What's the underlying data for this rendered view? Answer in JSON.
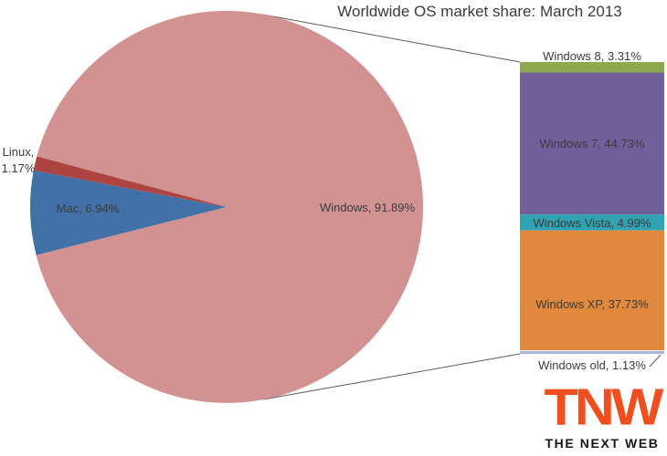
{
  "title": "Worldwide OS market share: March 2013",
  "chart_data": {
    "type": "pie",
    "subtype": "bar-of-pie",
    "title": "Worldwide OS market share: March 2013",
    "legend": "none",
    "data_labels": "category name, percentage",
    "pie_series": {
      "name": "OS market share",
      "slices": [
        {
          "label": "Windows",
          "value": 91.89,
          "data_label": "Windows, 91.89%",
          "color": "#D29292",
          "label_placement": "inside"
        },
        {
          "label": "Mac",
          "value": 6.94,
          "data_label": "Mac, 6.94%",
          "color": "#4171A6",
          "label_placement": "inside"
        },
        {
          "label": "Linux",
          "value": 1.17,
          "data_label": "Linux, 1.17%",
          "color": "#AE4442",
          "label_placement": "outside-two-line"
        }
      ]
    },
    "bar_breakdown": {
      "of_slice": "Windows",
      "segments": [
        {
          "label": "Windows 8",
          "value": 3.31,
          "data_label": "Windows 8, 3.31%",
          "color": "#8CA94D",
          "label_placement": "above"
        },
        {
          "label": "Windows 7",
          "value": 44.73,
          "data_label": "Windows 7, 44.73%",
          "color": "#715F9C",
          "label_placement": "inside"
        },
        {
          "label": "Windows Vista",
          "value": 4.99,
          "data_label": "Windows Vista, 4.99%",
          "color": "#2FA3B4",
          "label_placement": "inside"
        },
        {
          "label": "Windows XP",
          "value": 37.73,
          "data_label": "Windows XP, 37.73%",
          "color": "#E0883B",
          "label_placement": "inside"
        },
        {
          "label": "Windows old",
          "value": 1.13,
          "data_label": "Windows old, 1.13%",
          "color": "#A7B7DB",
          "label_placement": "below-with-leader"
        }
      ]
    },
    "colors": {
      "connector_line": "#595959",
      "label_text": "#3B3B3B"
    }
  },
  "logo": {
    "wordmark": "TNW",
    "tagline": "THE NEXT WEB",
    "brand_color": "#F04E1E"
  }
}
